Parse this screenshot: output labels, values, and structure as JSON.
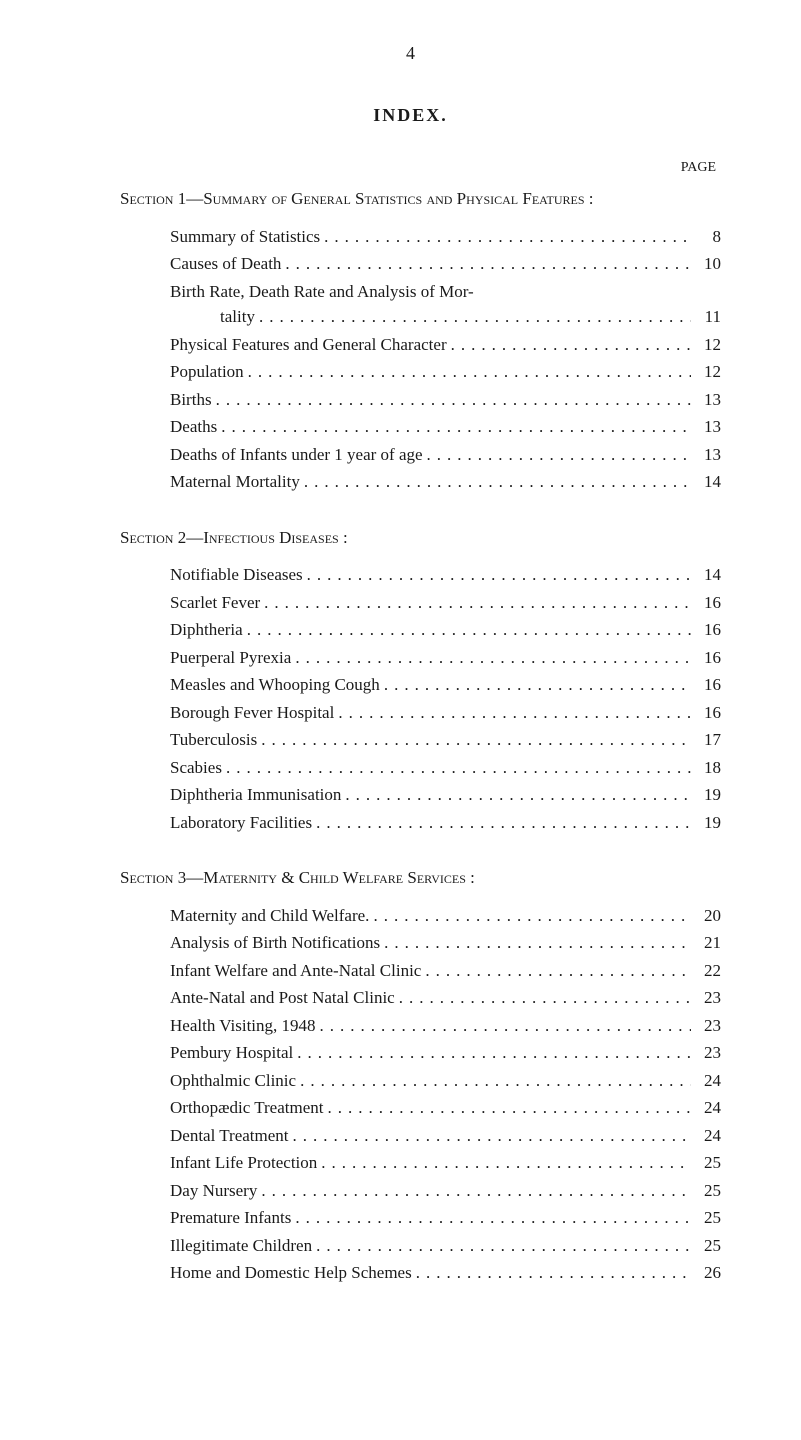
{
  "page_number": "4",
  "index_title": "INDEX.",
  "page_label": "PAGE",
  "colors": {
    "background": "#ffffff",
    "text": "#1a1a1a"
  },
  "typography": {
    "body_fontsize": 17,
    "title_fontsize": 18,
    "page_label_fontsize": 14,
    "font_family": "Georgia, Times New Roman, serif"
  },
  "sections": [
    {
      "heading": "Section 1—Summary of General Statistics and Physical Features :",
      "entries": [
        {
          "label": "Summary of Statistics",
          "page": "8"
        },
        {
          "label": "Causes of Death",
          "page": "10"
        },
        {
          "label_wrap": {
            "line1": "Birth Rate, Death Rate and Analysis of Mor-",
            "line2": "tality"
          },
          "page": "11"
        },
        {
          "label": "Physical Features and General Character",
          "page": "12"
        },
        {
          "label": "Population",
          "page": "12"
        },
        {
          "label": "Births",
          "page": "13"
        },
        {
          "label": "Deaths",
          "page": "13"
        },
        {
          "label": "Deaths of Infants under 1 year of age",
          "page": "13"
        },
        {
          "label": "Maternal Mortality",
          "page": "14"
        }
      ]
    },
    {
      "heading": "Section 2—Infectious Diseases :",
      "entries": [
        {
          "label": "Notifiable Diseases",
          "page": "14"
        },
        {
          "label": "Scarlet Fever",
          "page": "16"
        },
        {
          "label": "Diphtheria",
          "page": "16"
        },
        {
          "label": "Puerperal Pyrexia",
          "page": "16"
        },
        {
          "label": "Measles and Whooping Cough",
          "page": "16"
        },
        {
          "label": "Borough Fever Hospital",
          "page": "16"
        },
        {
          "label": "Tuberculosis",
          "page": "17"
        },
        {
          "label": "Scabies",
          "page": "18"
        },
        {
          "label": "Diphtheria Immunisation",
          "page": "19"
        },
        {
          "label": "Laboratory Facilities",
          "page": "19"
        }
      ]
    },
    {
      "heading": "Section 3—Maternity & Child Welfare Services :",
      "entries": [
        {
          "label": "Maternity and Child Welfare.",
          "page": "20"
        },
        {
          "label": "Analysis of Birth Notifications",
          "page": "21"
        },
        {
          "label": "Infant Welfare and Ante-Natal Clinic",
          "page": "22"
        },
        {
          "label": "Ante-Natal and Post Natal Clinic",
          "page": "23"
        },
        {
          "label": "Health Visiting, 1948",
          "page": "23"
        },
        {
          "label": "Pembury Hospital",
          "page": "23"
        },
        {
          "label": "Ophthalmic Clinic",
          "page": "24"
        },
        {
          "label": "Orthopædic Treatment",
          "page": "24"
        },
        {
          "label": "Dental Treatment",
          "page": "24"
        },
        {
          "label": "Infant Life Protection",
          "page": "25"
        },
        {
          "label": "Day Nursery",
          "page": "25"
        },
        {
          "label": "Premature Infants",
          "page": "25"
        },
        {
          "label": "Illegitimate Children",
          "page": "25"
        },
        {
          "label": "Home and Domestic Help Schemes",
          "page": "26"
        }
      ]
    }
  ]
}
